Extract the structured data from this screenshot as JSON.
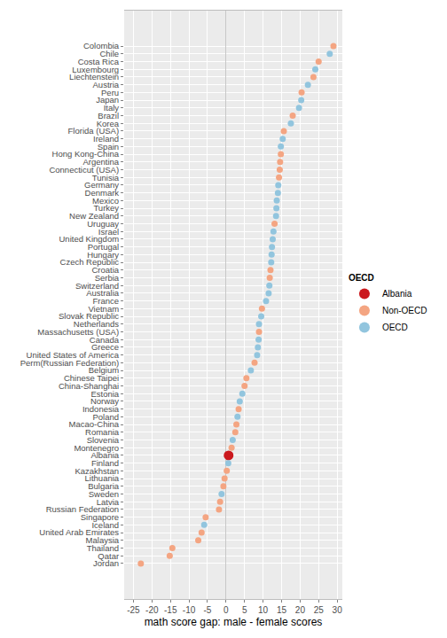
{
  "chart_data": {
    "type": "scatter",
    "orientation": "horizontal",
    "x_label": "math score gap: male - female scores",
    "legend_title": "OECD",
    "legend": "right",
    "grid": true,
    "xlim": [
      -27.5,
      31.4
    ],
    "xticks": [
      -25,
      -20,
      -15,
      -10,
      -5,
      0,
      5,
      10,
      15,
      20,
      25,
      30
    ],
    "categories": [
      "Colombia",
      "Chile",
      "Costa Rica",
      "Luxembourg",
      "Liechtenstein",
      "Austria",
      "Peru",
      "Japan",
      "Italy",
      "Brazil",
      "Korea",
      "Florida (USA)",
      "Ireland",
      "Spain",
      "Hong Kong-China",
      "Argentina",
      "Connecticut (USA)",
      "Tunisia",
      "Germany",
      "Denmark",
      "Mexico",
      "Turkey",
      "New Zealand",
      "Uruguay",
      "Israel",
      "United Kingdom",
      "Portugal",
      "Hungary",
      "Czech Republic",
      "Croatia",
      "Serbia",
      "Switzerland",
      "Australia",
      "France",
      "Vietnam",
      "Slovak Republic",
      "Netherlands",
      "Massachusetts (USA)",
      "Canada",
      "Greece",
      "United States of America",
      "Perm(Russian Federation)",
      "Belgium",
      "Chinese Taipei",
      "China-Shanghai",
      "Estonia",
      "Norway",
      "Indonesia",
      "Poland",
      "Macao-China",
      "Romania",
      "Slovenia",
      "Montenegro",
      "Albania",
      "Finland",
      "Kazakhstan",
      "Lithuania",
      "Bulgaria",
      "Sweden",
      "Latvia",
      "Russian Federation",
      "Singapore",
      "Iceland",
      "United Arab Emirates",
      "Malaysia",
      "Thailand",
      "Qatar",
      "Jordan"
    ],
    "series": [
      {
        "name": "Albania",
        "color": "#CB181D",
        "marker": "big-circle",
        "values": [
          null,
          null,
          null,
          null,
          null,
          null,
          null,
          null,
          null,
          null,
          null,
          null,
          null,
          null,
          null,
          null,
          null,
          null,
          null,
          null,
          null,
          null,
          null,
          null,
          null,
          null,
          null,
          null,
          null,
          null,
          null,
          null,
          null,
          null,
          null,
          null,
          null,
          null,
          null,
          null,
          null,
          null,
          null,
          null,
          null,
          null,
          null,
          null,
          null,
          null,
          null,
          null,
          null,
          0.7,
          null,
          null,
          null,
          null,
          null,
          null,
          null,
          null,
          null,
          null,
          null,
          null,
          null,
          null
        ]
      },
      {
        "name": "Non-OECD",
        "color": "#F4A582",
        "marker": "circle",
        "values": [
          29,
          null,
          25,
          null,
          23.6,
          null,
          20.4,
          null,
          null,
          18,
          null,
          15.6,
          null,
          null,
          14.8,
          14.6,
          14.5,
          14.3,
          null,
          null,
          null,
          null,
          null,
          13.1,
          null,
          null,
          null,
          null,
          null,
          12,
          11.8,
          null,
          null,
          null,
          9.7,
          null,
          null,
          8.9,
          null,
          null,
          null,
          7.7,
          null,
          5.5,
          5,
          null,
          null,
          3.4,
          null,
          2.8,
          2.5,
          null,
          1.5,
          null,
          null,
          0.2,
          -0.4,
          -0.7,
          null,
          -1.6,
          -1.9,
          -5.5,
          null,
          -6.6,
          -7.5,
          -14.5,
          -15.2,
          -23
        ]
      },
      {
        "name": "OECD",
        "color": "#92C5DE",
        "marker": "circle",
        "values": [
          null,
          28,
          null,
          24.1,
          null,
          22.1,
          null,
          20.3,
          19.7,
          null,
          17.5,
          null,
          15.3,
          14.8,
          null,
          null,
          null,
          null,
          14.1,
          14,
          13.7,
          13.6,
          13.5,
          null,
          12.8,
          12.6,
          12.4,
          12.3,
          12.2,
          null,
          null,
          11.7,
          11.5,
          10.8,
          null,
          9.5,
          8.9,
          null,
          8.8,
          8.6,
          8.4,
          null,
          6.7,
          null,
          null,
          4.4,
          3.7,
          null,
          3.1,
          null,
          null,
          1.8,
          null,
          null,
          0.6,
          null,
          null,
          null,
          -1.2,
          null,
          null,
          null,
          -5.9,
          null,
          null,
          null,
          null,
          null
        ]
      }
    ]
  }
}
